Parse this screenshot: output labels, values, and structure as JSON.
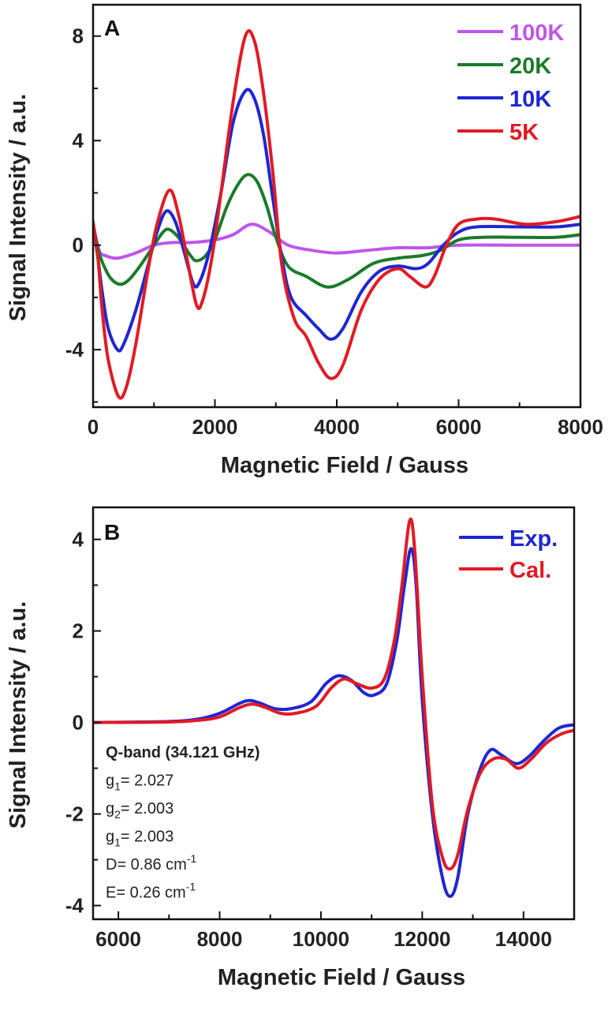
{
  "chart_data": [
    {
      "panel": "A",
      "type": "line",
      "xlabel": "Magnetic Field / Gauss",
      "ylabel": "Signal Intensity / a.u.",
      "xlim": [
        0,
        8000
      ],
      "ylim": [
        -6.2,
        9.2
      ],
      "xticks": [
        0,
        2000,
        4000,
        6000,
        8000
      ],
      "yticks": [
        -4,
        0,
        4,
        8
      ],
      "legend_position": "top-right",
      "series": [
        {
          "name": "100K",
          "color": "#bf55ec",
          "points": [
            [
              0,
              0.8
            ],
            [
              100,
              -0.2
            ],
            [
              200,
              -0.4
            ],
            [
              400,
              -0.5
            ],
            [
              700,
              -0.3
            ],
            [
              1000,
              0.0
            ],
            [
              1300,
              0.1
            ],
            [
              1600,
              0.1
            ],
            [
              2000,
              0.2
            ],
            [
              2300,
              0.4
            ],
            [
              2600,
              0.8
            ],
            [
              2900,
              0.5
            ],
            [
              3200,
              0.0
            ],
            [
              3600,
              -0.2
            ],
            [
              4000,
              -0.3
            ],
            [
              4500,
              -0.2
            ],
            [
              5000,
              -0.1
            ],
            [
              5500,
              -0.1
            ],
            [
              6000,
              0.0
            ],
            [
              7000,
              0.0
            ],
            [
              8000,
              0.0
            ]
          ]
        },
        {
          "name": "20K",
          "color": "#1b7a2a",
          "points": [
            [
              0,
              0.8
            ],
            [
              100,
              -0.3
            ],
            [
              200,
              -0.9
            ],
            [
              300,
              -1.3
            ],
            [
              450,
              -1.5
            ],
            [
              600,
              -1.3
            ],
            [
              800,
              -0.7
            ],
            [
              1000,
              0.0
            ],
            [
              1150,
              0.5
            ],
            [
              1250,
              0.6
            ],
            [
              1400,
              0.3
            ],
            [
              1600,
              -0.4
            ],
            [
              1700,
              -0.6
            ],
            [
              1850,
              -0.4
            ],
            [
              2000,
              0.2
            ],
            [
              2200,
              1.5
            ],
            [
              2400,
              2.4
            ],
            [
              2550,
              2.7
            ],
            [
              2700,
              2.4
            ],
            [
              2850,
              1.5
            ],
            [
              3000,
              0.3
            ],
            [
              3200,
              -0.8
            ],
            [
              3500,
              -1.2
            ],
            [
              3850,
              -1.6
            ],
            [
              4200,
              -1.3
            ],
            [
              4600,
              -0.7
            ],
            [
              5000,
              -0.5
            ],
            [
              5400,
              -0.4
            ],
            [
              5700,
              -0.2
            ],
            [
              6000,
              0.2
            ],
            [
              6400,
              0.3
            ],
            [
              7000,
              0.3
            ],
            [
              7600,
              0.3
            ],
            [
              8000,
              0.4
            ]
          ]
        },
        {
          "name": "10K",
          "color": "#1f26d1",
          "points": [
            [
              0,
              0.8
            ],
            [
              80,
              -0.5
            ],
            [
              150,
              -1.8
            ],
            [
              250,
              -3.2
            ],
            [
              400,
              -4.0
            ],
            [
              500,
              -3.8
            ],
            [
              700,
              -2.5
            ],
            [
              900,
              -0.8
            ],
            [
              1050,
              0.5
            ],
            [
              1200,
              1.3
            ],
            [
              1350,
              0.9
            ],
            [
              1500,
              -0.3
            ],
            [
              1650,
              -1.5
            ],
            [
              1750,
              -1.4
            ],
            [
              1900,
              -0.3
            ],
            [
              2100,
              2.0
            ],
            [
              2300,
              4.7
            ],
            [
              2500,
              5.9
            ],
            [
              2650,
              5.6
            ],
            [
              2800,
              4.2
            ],
            [
              2950,
              1.8
            ],
            [
              3100,
              -0.5
            ],
            [
              3250,
              -2.0
            ],
            [
              3500,
              -2.7
            ],
            [
              3700,
              -3.2
            ],
            [
              3900,
              -3.6
            ],
            [
              4100,
              -3.2
            ],
            [
              4400,
              -1.8
            ],
            [
              4700,
              -1.0
            ],
            [
              5000,
              -0.8
            ],
            [
              5300,
              -0.9
            ],
            [
              5500,
              -0.7
            ],
            [
              5750,
              0.0
            ],
            [
              6000,
              0.5
            ],
            [
              6300,
              0.7
            ],
            [
              7000,
              0.7
            ],
            [
              7600,
              0.7
            ],
            [
              8000,
              0.8
            ]
          ]
        },
        {
          "name": "5K",
          "color": "#e01b24",
          "points": [
            [
              0,
              0.9
            ],
            [
              80,
              -0.5
            ],
            [
              150,
              -2.5
            ],
            [
              250,
              -4.4
            ],
            [
              420,
              -5.8
            ],
            [
              550,
              -5.4
            ],
            [
              700,
              -3.8
            ],
            [
              900,
              -1.0
            ],
            [
              1050,
              0.8
            ],
            [
              1250,
              2.1
            ],
            [
              1400,
              1.2
            ],
            [
              1550,
              -0.6
            ],
            [
              1700,
              -2.3
            ],
            [
              1800,
              -2.1
            ],
            [
              1950,
              -0.5
            ],
            [
              2100,
              2.0
            ],
            [
              2300,
              5.5
            ],
            [
              2500,
              8.0
            ],
            [
              2650,
              7.8
            ],
            [
              2800,
              5.8
            ],
            [
              2950,
              2.8
            ],
            [
              3100,
              -0.8
            ],
            [
              3300,
              -2.8
            ],
            [
              3500,
              -3.5
            ],
            [
              3700,
              -4.5
            ],
            [
              3900,
              -5.1
            ],
            [
              4100,
              -4.6
            ],
            [
              4400,
              -2.5
            ],
            [
              4700,
              -1.3
            ],
            [
              5000,
              -0.9
            ],
            [
              5200,
              -1.2
            ],
            [
              5450,
              -1.6
            ],
            [
              5600,
              -1.2
            ],
            [
              5800,
              0.0
            ],
            [
              6000,
              0.8
            ],
            [
              6300,
              1.0
            ],
            [
              6600,
              1.0
            ],
            [
              7100,
              0.8
            ],
            [
              7600,
              0.9
            ],
            [
              8000,
              1.1
            ]
          ]
        }
      ]
    },
    {
      "panel": "B",
      "type": "line",
      "xlabel": "Magnetic Field / Gauss",
      "ylabel": "Signal Intensity / a.u.",
      "xlim": [
        5500,
        15000
      ],
      "ylim": [
        -4.3,
        4.7
      ],
      "xticks": [
        6000,
        8000,
        10000,
        12000,
        14000
      ],
      "yticks": [
        -4,
        -2,
        0,
        2,
        4
      ],
      "legend_position": "top-right",
      "series": [
        {
          "name": "Exp.",
          "color": "#1f26d1",
          "points": [
            [
              5500,
              0.0
            ],
            [
              7000,
              0.02
            ],
            [
              7600,
              0.08
            ],
            [
              8000,
              0.2
            ],
            [
              8400,
              0.42
            ],
            [
              8600,
              0.48
            ],
            [
              8800,
              0.42
            ],
            [
              9100,
              0.3
            ],
            [
              9400,
              0.3
            ],
            [
              9800,
              0.45
            ],
            [
              10100,
              0.85
            ],
            [
              10350,
              1.02
            ],
            [
              10600,
              0.92
            ],
            [
              10850,
              0.65
            ],
            [
              11050,
              0.6
            ],
            [
              11300,
              0.85
            ],
            [
              11500,
              1.8
            ],
            [
              11650,
              3.0
            ],
            [
              11780,
              3.8
            ],
            [
              11880,
              3.0
            ],
            [
              12000,
              0.5
            ],
            [
              12200,
              -2.0
            ],
            [
              12400,
              -3.4
            ],
            [
              12550,
              -3.8
            ],
            [
              12700,
              -3.4
            ],
            [
              12900,
              -2.0
            ],
            [
              13150,
              -1.0
            ],
            [
              13350,
              -0.6
            ],
            [
              13550,
              -0.7
            ],
            [
              13850,
              -0.9
            ],
            [
              14100,
              -0.75
            ],
            [
              14400,
              -0.4
            ],
            [
              14700,
              -0.12
            ],
            [
              15000,
              -0.05
            ]
          ]
        },
        {
          "name": "Cal.",
          "color": "#e01b24",
          "points": [
            [
              5500,
              0.0
            ],
            [
              7000,
              0.01
            ],
            [
              7600,
              0.05
            ],
            [
              8000,
              0.12
            ],
            [
              8400,
              0.33
            ],
            [
              8650,
              0.4
            ],
            [
              8900,
              0.33
            ],
            [
              9200,
              0.2
            ],
            [
              9500,
              0.2
            ],
            [
              9900,
              0.35
            ],
            [
              10200,
              0.75
            ],
            [
              10450,
              0.95
            ],
            [
              10700,
              0.85
            ],
            [
              11000,
              0.75
            ],
            [
              11250,
              0.95
            ],
            [
              11450,
              1.8
            ],
            [
              11600,
              3.0
            ],
            [
              11750,
              4.4
            ],
            [
              11850,
              3.8
            ],
            [
              12000,
              1.0
            ],
            [
              12200,
              -1.8
            ],
            [
              12400,
              -2.95
            ],
            [
              12550,
              -3.2
            ],
            [
              12700,
              -2.9
            ],
            [
              12900,
              -1.9
            ],
            [
              13150,
              -1.1
            ],
            [
              13400,
              -0.8
            ],
            [
              13650,
              -0.8
            ],
            [
              13900,
              -1.0
            ],
            [
              14150,
              -0.8
            ],
            [
              14450,
              -0.45
            ],
            [
              14750,
              -0.25
            ],
            [
              15000,
              -0.17
            ]
          ]
        }
      ],
      "annotations": [
        {
          "text": "Q-band (34.121 GHz)",
          "bold": true
        },
        {
          "base": "g",
          "sub": "1",
          "rest": "= 2.027"
        },
        {
          "base": "g",
          "sub": "2",
          "rest": "= 2.003"
        },
        {
          "base": "g",
          "sub": "1",
          "rest": "= 2.003"
        },
        {
          "base": "D= 0.86 cm",
          "sup": "-1"
        },
        {
          "base": "E= 0.26 cm",
          "sup": "-1"
        }
      ]
    }
  ]
}
